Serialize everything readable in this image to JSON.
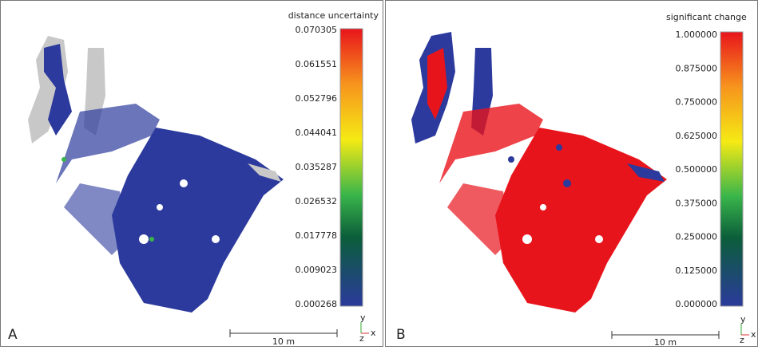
{
  "panels": [
    {
      "label": "A",
      "scale_title": "distance uncertainty",
      "scale_ticks": [
        "0.070305",
        "0.061551",
        "0.052796",
        "0.044041",
        "0.035287",
        "0.026532",
        "0.017778",
        "0.009023",
        "0.000268"
      ],
      "scale_bar": "10 m",
      "axes": {
        "x": "x",
        "y": "y",
        "z": "z"
      }
    },
    {
      "label": "B",
      "scale_title": "significant change",
      "scale_ticks": [
        "1.000000",
        "0.875000",
        "0.750000",
        "0.625000",
        "0.500000",
        "0.375000",
        "0.250000",
        "0.125000",
        "0.000000"
      ],
      "scale_bar": "10 m",
      "axes": {
        "x": "x",
        "y": "y",
        "z": "z"
      }
    }
  ]
}
